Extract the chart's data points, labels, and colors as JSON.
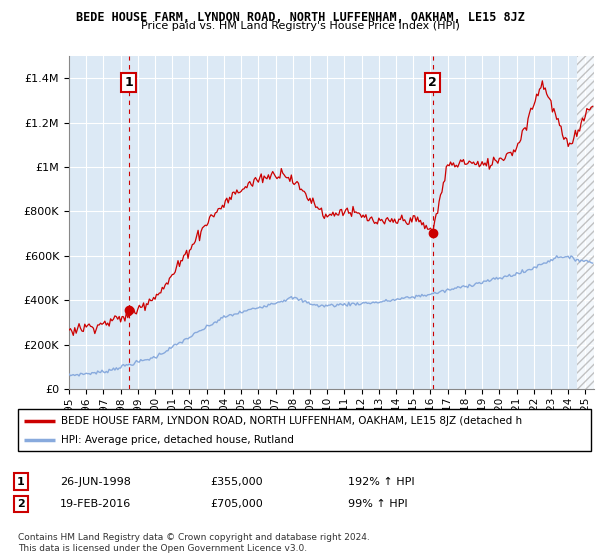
{
  "title": "BEDE HOUSE FARM, LYNDON ROAD, NORTH LUFFENHAM, OAKHAM, LE15 8JZ",
  "subtitle": "Price paid vs. HM Land Registry's House Price Index (HPI)",
  "legend_line1": "BEDE HOUSE FARM, LYNDON ROAD, NORTH LUFFENHAM, OAKHAM, LE15 8JZ (detached h",
  "legend_line2": "HPI: Average price, detached house, Rutland",
  "annotation1_date": "26-JUN-1998",
  "annotation1_price": 355000,
  "annotation1_hpi": "192% ↑ HPI",
  "annotation2_date": "19-FEB-2016",
  "annotation2_price": 705000,
  "annotation2_hpi": "99% ↑ HPI",
  "copyright": "Contains HM Land Registry data © Crown copyright and database right 2024.\nThis data is licensed under the Open Government Licence v3.0.",
  "line1_color": "#cc0000",
  "line2_color": "#88aadd",
  "annotation_box_color": "#cc0000",
  "background_color": "#ffffff",
  "plot_bg_color": "#dce9f5",
  "grid_color": "#ffffff",
  "ylim": [
    0,
    1500000
  ],
  "yticks": [
    0,
    200000,
    400000,
    600000,
    800000,
    1000000,
    1200000,
    1400000
  ],
  "x_start": 1995.25,
  "x_end": 2025.5,
  "sale1_x": 1998.48,
  "sale1_y": 355000,
  "sale2_x": 2016.12,
  "sale2_y": 705000,
  "hatch_start": 2024.5,
  "xtick_years": [
    1995,
    1996,
    1997,
    1998,
    1999,
    2000,
    2001,
    2002,
    2003,
    2004,
    2005,
    2006,
    2007,
    2008,
    2009,
    2010,
    2011,
    2012,
    2013,
    2014,
    2015,
    2016,
    2017,
    2018,
    2019,
    2020,
    2021,
    2022,
    2023,
    2024,
    2025
  ]
}
